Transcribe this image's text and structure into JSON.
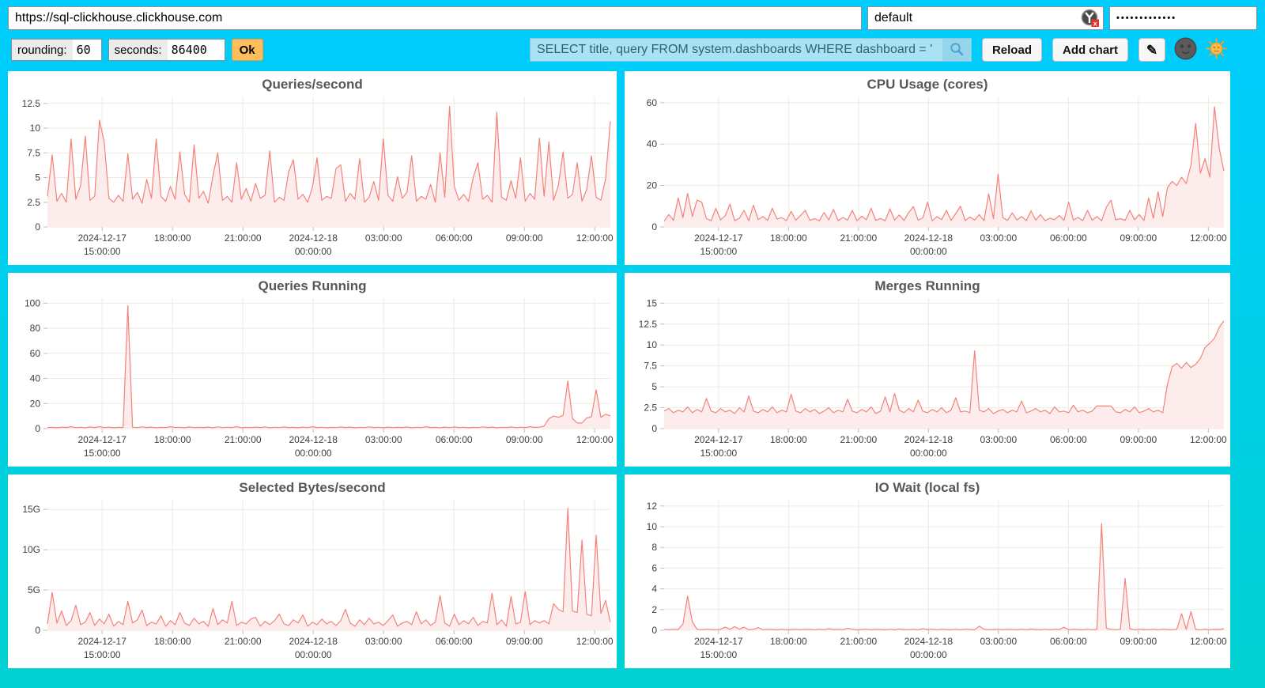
{
  "theme": {
    "background_top": "#00CCFF",
    "background_bottom": "#00D0D0",
    "card": "#FFFFFF",
    "line": "#F5817A",
    "fill": "#FCEDEC",
    "grid": "#ECEBDE",
    "tick": "#BDBDBD",
    "axis_text": "#3E3E3E",
    "title_text": "#575757",
    "ok_button": "#FFBE5E",
    "query_bg": "#ABE2F3",
    "query_text": "#2C6472",
    "search_btn_bg": "#96D5EA",
    "magnifier_color": "#4A9FD4"
  },
  "toolbar": {
    "url": "https://sql-clickhouse.clickhouse.com",
    "user": "default",
    "password_masked": "•••••••••••••",
    "rounding_label": "rounding:",
    "rounding_value": "60",
    "seconds_label": "seconds:",
    "seconds_value": "86400",
    "ok_label": "Ok",
    "query_value": "SELECT title, query FROM system.dashboards WHERE dashboard = '",
    "reload_label": "Reload",
    "add_chart_label": "Add chart",
    "edit_icon_glyph": "✎",
    "icons": {
      "search": "magnifier-icon",
      "password_manager": "password-manager-icon-with-error-badge",
      "theme_dark": "new-moon-face-icon",
      "theme_light": "sun-with-face-icon"
    }
  },
  "xticks": [
    {
      "f": 0.0972,
      "lines": [
        "2024-12-17",
        "15:00:00"
      ]
    },
    {
      "f": 0.2222,
      "lines": [
        "18:00:00"
      ]
    },
    {
      "f": 0.3472,
      "lines": [
        "21:00:00"
      ]
    },
    {
      "f": 0.4722,
      "lines": [
        "2024-12-18",
        "00:00:00"
      ]
    },
    {
      "f": 0.5972,
      "lines": [
        "03:00:00"
      ]
    },
    {
      "f": 0.7222,
      "lines": [
        "06:00:00"
      ]
    },
    {
      "f": 0.8472,
      "lines": [
        "09:00:00"
      ]
    },
    {
      "f": 0.9722,
      "lines": [
        "12:00:00"
      ]
    }
  ],
  "chart_data": [
    {
      "type": "area",
      "title": "Queries/second",
      "x_range": [
        "2024-12-17 12:40:00",
        "2024-12-18 12:40:00"
      ],
      "ymax": 13.2,
      "yticks": [
        {
          "v": 0,
          "label": "0"
        },
        {
          "v": 2.5,
          "label": "2.5"
        },
        {
          "v": 5,
          "label": "5"
        },
        {
          "v": 7.5,
          "label": "7.5"
        },
        {
          "v": 10,
          "label": "10"
        },
        {
          "v": 12.5,
          "label": "12.5"
        }
      ],
      "values": [
        3.1,
        7.3,
        2.6,
        3.4,
        2.5,
        8.9,
        2.8,
        4.2,
        9.2,
        2.7,
        3.1,
        10.8,
        8.6,
        2.9,
        2.5,
        3.2,
        2.6,
        7.4,
        2.8,
        3.5,
        2.4,
        4.8,
        2.9,
        8.9,
        3.1,
        2.6,
        4.1,
        2.8,
        7.6,
        3.3,
        2.5,
        8.3,
        2.9,
        3.6,
        2.4,
        5.2,
        7.5,
        2.7,
        3.1,
        2.5,
        6.5,
        2.8,
        3.9,
        2.6,
        4.4,
        2.9,
        3.2,
        7.7,
        2.5,
        3.0,
        2.7,
        5.6,
        6.8,
        2.8,
        3.3,
        2.5,
        4.0,
        7.0,
        2.7,
        3.1,
        2.9,
        5.9,
        6.3,
        2.6,
        3.4,
        2.8,
        6.9,
        2.5,
        3.0,
        4.6,
        2.7,
        8.9,
        3.2,
        2.6,
        5.1,
        2.9,
        3.5,
        7.2,
        2.6,
        3.1,
        2.8,
        4.3,
        2.5,
        7.5,
        3.0,
        12.2,
        4.1,
        2.7,
        3.3,
        2.6,
        5.0,
        6.5,
        2.8,
        3.2,
        2.5,
        11.6,
        3.0,
        2.7,
        4.7,
        2.9,
        7.0,
        2.6,
        3.4,
        2.8,
        9.0,
        3.1,
        8.6,
        2.7,
        4.2,
        7.6,
        2.9,
        3.3,
        6.5,
        2.6,
        3.8,
        7.2,
        3.0,
        2.7,
        4.9,
        10.7
      ]
    },
    {
      "type": "area",
      "title": "CPU Usage (cores)",
      "x_range": [
        "2024-12-17 12:40:00",
        "2024-12-18 12:40:00"
      ],
      "ymax": 63,
      "yticks": [
        {
          "v": 0,
          "label": "0"
        },
        {
          "v": 20,
          "label": "20"
        },
        {
          "v": 40,
          "label": "40"
        },
        {
          "v": 60,
          "label": "60"
        }
      ],
      "values": [
        2.8,
        6.0,
        3.2,
        14.0,
        4.5,
        16.2,
        5.0,
        13.0,
        12.0,
        4.0,
        3.0,
        9.0,
        3.4,
        5.5,
        11.0,
        3.1,
        4.2,
        8.0,
        3.0,
        10.5,
        3.5,
        5.0,
        3.2,
        9.0,
        3.8,
        4.5,
        3.1,
        7.5,
        3.3,
        5.5,
        8.0,
        3.2,
        4.0,
        3.0,
        7.0,
        3.4,
        8.5,
        3.1,
        4.6,
        3.3,
        8.0,
        3.0,
        5.2,
        3.5,
        9.0,
        3.2,
        4.1,
        3.0,
        8.8,
        3.4,
        5.8,
        3.1,
        7.0,
        9.8,
        3.3,
        4.4,
        12.0,
        3.0,
        5.0,
        3.5,
        8.0,
        3.2,
        6.5,
        10.0,
        3.1,
        4.8,
        3.3,
        6.0,
        3.0,
        16.0,
        4.0,
        25.5,
        4.5,
        3.2,
        6.8,
        3.4,
        5.0,
        3.1,
        7.8,
        3.3,
        6.0,
        3.0,
        4.2,
        3.5,
        5.5,
        3.2,
        12.0,
        3.4,
        4.6,
        3.1,
        8.0,
        3.3,
        5.0,
        3.0,
        9.5,
        13.0,
        3.4,
        4.0,
        3.2,
        8.0,
        3.5,
        6.0,
        3.1,
        14.0,
        4.2,
        17.0,
        5.0,
        19.0,
        22.0,
        20.0,
        24.0,
        21.0,
        30.0,
        50.0,
        26.0,
        33.0,
        24.0,
        58.0,
        38.0,
        27.0
      ]
    },
    {
      "type": "area",
      "title": "Queries Running",
      "x_range": [
        "2024-12-17 12:40:00",
        "2024-12-18 12:40:00"
      ],
      "ymax": 104,
      "yticks": [
        {
          "v": 0,
          "label": "0"
        },
        {
          "v": 20,
          "label": "20"
        },
        {
          "v": 40,
          "label": "40"
        },
        {
          "v": 60,
          "label": "60"
        },
        {
          "v": 80,
          "label": "80"
        },
        {
          "v": 100,
          "label": "100"
        }
      ],
      "values": [
        0.8,
        1.0,
        0.7,
        1.2,
        0.9,
        1.5,
        0.8,
        1.1,
        0.7,
        1.3,
        0.9,
        1.6,
        0.8,
        1.2,
        0.7,
        1.0,
        0.9,
        98.0,
        1.1,
        0.8,
        1.4,
        0.9,
        1.2,
        0.7,
        1.0,
        0.8,
        1.5,
        0.9,
        1.1,
        0.7,
        1.3,
        0.8,
        1.0,
        0.9,
        1.2,
        0.7,
        1.4,
        0.8,
        1.1,
        0.9,
        1.6,
        0.7,
        1.0,
        0.8,
        1.2,
        0.9,
        1.4,
        0.7,
        1.1,
        0.8,
        1.3,
        0.9,
        1.0,
        0.7,
        1.2,
        0.8,
        1.5,
        0.9,
        1.1,
        0.7,
        1.0,
        0.8,
        1.3,
        0.9,
        1.2,
        0.7,
        1.0,
        0.8,
        1.4,
        0.9,
        1.1,
        0.7,
        1.2,
        0.8,
        1.0,
        0.9,
        1.3,
        0.7,
        1.1,
        0.8,
        1.5,
        0.9,
        1.0,
        0.7,
        1.2,
        0.8,
        1.3,
        0.9,
        1.1,
        0.7,
        1.0,
        0.8,
        1.4,
        0.9,
        1.2,
        0.7,
        1.0,
        0.9,
        1.3,
        0.8,
        1.1,
        0.9,
        1.5,
        1.0,
        1.2,
        2.0,
        8.0,
        10.0,
        9.0,
        10.5,
        38.0,
        8.0,
        4.5,
        4.5,
        8.5,
        9.5,
        31.0,
        9.0,
        11.5,
        10.0
      ]
    },
    {
      "type": "area",
      "title": "Merges Running",
      "x_range": [
        "2024-12-17 12:40:00",
        "2024-12-18 12:40:00"
      ],
      "ymax": 15.6,
      "yticks": [
        {
          "v": 0,
          "label": "0"
        },
        {
          "v": 2.5,
          "label": "2.5"
        },
        {
          "v": 5,
          "label": "5"
        },
        {
          "v": 7.5,
          "label": "7.5"
        },
        {
          "v": 10,
          "label": "10"
        },
        {
          "v": 12.5,
          "label": "12.5"
        },
        {
          "v": 15,
          "label": "15"
        }
      ],
      "values": [
        2.1,
        2.4,
        1.9,
        2.2,
        2.0,
        2.6,
        1.9,
        2.3,
        2.0,
        3.6,
        2.1,
        1.9,
        2.4,
        2.0,
        2.2,
        1.8,
        2.5,
        2.0,
        3.9,
        2.1,
        1.9,
        2.3,
        2.0,
        2.6,
        1.9,
        2.2,
        2.0,
        4.1,
        2.1,
        1.9,
        2.4,
        2.0,
        2.3,
        1.8,
        2.1,
        2.5,
        1.9,
        2.2,
        2.0,
        3.5,
        2.1,
        1.9,
        2.3,
        2.0,
        2.6,
        1.8,
        2.1,
        3.8,
        2.0,
        4.2,
        2.2,
        1.9,
        2.4,
        2.0,
        3.4,
        2.1,
        1.9,
        2.3,
        2.0,
        2.5,
        1.9,
        2.2,
        3.7,
        2.0,
        2.1,
        1.9,
        9.3,
        2.2,
        2.0,
        2.4,
        1.8,
        2.1,
        2.3,
        1.9,
        2.2,
        2.0,
        3.3,
        1.9,
        2.1,
        2.4,
        2.0,
        2.2,
        1.8,
        2.6,
        2.0,
        2.1,
        1.9,
        2.8,
        2.0,
        2.2,
        1.9,
        2.1,
        2.7,
        2.7,
        2.7,
        2.7,
        2.0,
        1.9,
        2.3,
        2.0,
        2.6,
        1.9,
        2.1,
        2.4,
        2.0,
        2.2,
        1.9,
        5.3,
        7.4,
        7.8,
        7.2,
        7.9,
        7.3,
        7.7,
        8.4,
        9.7,
        10.2,
        10.8,
        12.1,
        12.9
      ]
    },
    {
      "type": "area",
      "title": "Selected Bytes/second",
      "x_range": [
        "2024-12-17 12:40:00",
        "2024-12-18 12:40:00"
      ],
      "unit": "G",
      "ymax": 16.2,
      "yticks": [
        {
          "v": 0,
          "label": "0"
        },
        {
          "v": 5,
          "label": "5G"
        },
        {
          "v": 10,
          "label": "10G"
        },
        {
          "v": 15,
          "label": "15G"
        }
      ],
      "values": [
        0.8,
        4.7,
        0.9,
        2.4,
        0.6,
        1.2,
        3.1,
        0.7,
        1.0,
        2.2,
        0.6,
        1.4,
        0.8,
        2.0,
        0.5,
        1.1,
        0.7,
        3.6,
        0.9,
        1.3,
        2.5,
        0.6,
        1.0,
        0.8,
        1.8,
        0.5,
        1.2,
        0.7,
        2.2,
        0.9,
        0.6,
        1.5,
        0.8,
        1.1,
        0.5,
        2.7,
        0.7,
        1.3,
        0.9,
        3.6,
        0.6,
        1.0,
        0.8,
        1.4,
        1.6,
        0.5,
        1.1,
        0.7,
        1.2,
        2.0,
        0.8,
        0.6,
        1.3,
        0.9,
        1.9,
        0.5,
        1.0,
        0.7,
        1.4,
        0.8,
        1.1,
        0.6,
        1.2,
        2.6,
        0.9,
        0.5,
        1.3,
        0.7,
        1.5,
        0.8,
        1.0,
        0.6,
        1.2,
        1.9,
        0.5,
        0.9,
        1.1,
        0.7,
        2.3,
        0.8,
        1.3,
        0.6,
        1.0,
        4.3,
        0.9,
        0.5,
        2.0,
        0.7,
        1.2,
        0.8,
        1.6,
        0.6,
        1.1,
        0.9,
        4.6,
        0.7,
        1.3,
        0.5,
        4.2,
        0.8,
        1.0,
        4.8,
        0.7,
        1.2,
        0.9,
        1.2,
        0.8,
        3.3,
        2.6,
        2.3,
        15.2,
        2.4,
        2.2,
        11.2,
        2.0,
        1.8,
        11.8,
        2.1,
        3.7,
        1.0
      ]
    },
    {
      "type": "area",
      "title": "IO Wait (local fs)",
      "x_range": [
        "2024-12-17 12:40:00",
        "2024-12-18 12:40:00"
      ],
      "ymax": 12.6,
      "yticks": [
        {
          "v": 0,
          "label": "0"
        },
        {
          "v": 2,
          "label": "2"
        },
        {
          "v": 4,
          "label": "4"
        },
        {
          "v": 6,
          "label": "6"
        },
        {
          "v": 8,
          "label": "8"
        },
        {
          "v": 10,
          "label": "10"
        },
        {
          "v": 12,
          "label": "12"
        }
      ],
      "values": [
        0.1,
        0.05,
        0.1,
        0.08,
        0.6,
        3.3,
        0.8,
        0.1,
        0.05,
        0.1,
        0.08,
        0.05,
        0.1,
        0.3,
        0.1,
        0.35,
        0.1,
        0.3,
        0.05,
        0.1,
        0.25,
        0.05,
        0.1,
        0.08,
        0.05,
        0.1,
        0.05,
        0.08,
        0.1,
        0.05,
        0.1,
        0.08,
        0.05,
        0.1,
        0.05,
        0.15,
        0.08,
        0.1,
        0.05,
        0.2,
        0.1,
        0.05,
        0.08,
        0.1,
        0.05,
        0.1,
        0.08,
        0.05,
        0.1,
        0.05,
        0.12,
        0.08,
        0.05,
        0.1,
        0.05,
        0.15,
        0.08,
        0.1,
        0.05,
        0.1,
        0.08,
        0.05,
        0.1,
        0.05,
        0.1,
        0.08,
        0.05,
        0.4,
        0.1,
        0.05,
        0.08,
        0.1,
        0.05,
        0.1,
        0.08,
        0.05,
        0.1,
        0.05,
        0.12,
        0.08,
        0.05,
        0.1,
        0.05,
        0.1,
        0.08,
        0.3,
        0.05,
        0.1,
        0.08,
        0.05,
        0.1,
        0.05,
        0.1,
        10.3,
        0.2,
        0.1,
        0.05,
        0.1,
        5.0,
        0.15,
        0.05,
        0.1,
        0.08,
        0.05,
        0.1,
        0.05,
        0.1,
        0.08,
        0.05,
        0.1,
        1.6,
        0.1,
        1.8,
        0.08,
        0.05,
        0.1,
        0.05,
        0.1,
        0.08,
        0.15
      ]
    }
  ]
}
